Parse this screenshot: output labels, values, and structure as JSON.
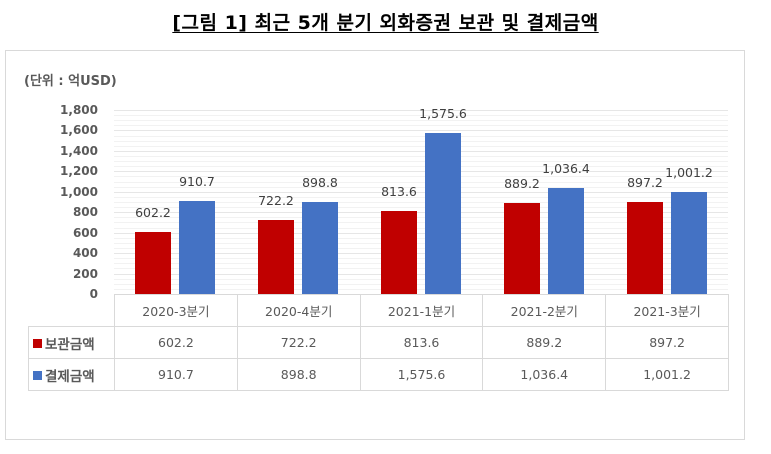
{
  "title": "[그림 1] 최근 5개 분기 외화증권 보관 및 결제금액",
  "unit_label": "(단위 : 억USD)",
  "colors": {
    "보관금액": "#c00000",
    "결제금액": "#4472c4",
    "grid": "#e6e6e6",
    "border": "#d9d9d9"
  },
  "y_ticks": [
    "1,800",
    "1,600",
    "1,400",
    "1,200",
    "1,000",
    "800",
    "600",
    "400",
    "200",
    "0"
  ],
  "table": {
    "headers": [
      "2020-3분기",
      "2020-4분기",
      "2021-1분기",
      "2021-2분기",
      "2021-3분기"
    ],
    "rows": [
      {
        "label": "보관금액",
        "values": [
          "602.2",
          "722.2",
          "813.6",
          "889.2",
          "897.2"
        ]
      },
      {
        "label": "결제금액",
        "values": [
          "910.7",
          "898.8",
          "1,575.6",
          "1,036.4",
          "1,001.2"
        ]
      }
    ]
  },
  "chart_data": {
    "type": "bar",
    "title": "[그림 1] 최근 5개 분기 외화증권 보관 및 결제금액",
    "categories": [
      "2020-3분기",
      "2020-4분기",
      "2021-1분기",
      "2021-2분기",
      "2021-3분기"
    ],
    "series": [
      {
        "name": "보관금액",
        "color": "#c00000",
        "values": [
          602.2,
          722.2,
          813.6,
          889.2,
          897.2
        ]
      },
      {
        "name": "결제금액",
        "color": "#4472c4",
        "values": [
          910.7,
          898.8,
          1575.6,
          1036.4,
          1001.2
        ]
      }
    ],
    "xlabel": "",
    "ylabel": "(단위 : 억USD)",
    "ylim": [
      0,
      1800
    ],
    "y_tick_step": 200,
    "grid": true,
    "legend_position": "data-table-left",
    "data_labels": true
  }
}
